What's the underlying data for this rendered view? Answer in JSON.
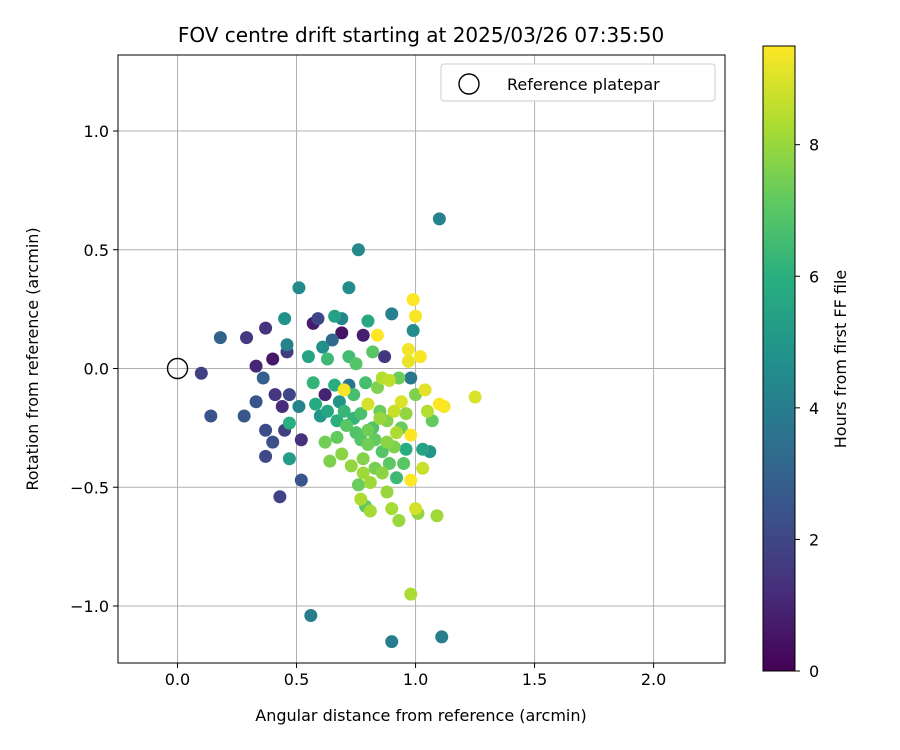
{
  "chart_data": {
    "type": "scatter",
    "title": "FOV centre drift starting at 2025/03/26 07:35:50",
    "xlabel": "Angular distance from reference (arcmin)",
    "ylabel": "Rotation from reference (arcmin)",
    "xlim": [
      -0.25,
      2.3
    ],
    "ylim": [
      -1.24,
      1.32
    ],
    "xticks": [
      "0.0",
      "0.5",
      "1.0",
      "1.5",
      "2.0"
    ],
    "xtick_values": [
      0,
      0.5,
      1.0,
      1.5,
      2.0
    ],
    "yticks": [
      "−1.0",
      "−0.5",
      "0.0",
      "0.5",
      "1.0"
    ],
    "ytick_values": [
      -1.0,
      -0.5,
      0.0,
      0.5,
      1.0
    ],
    "grid": true,
    "legend": {
      "position": "top-right",
      "entries": [
        "Reference platepar"
      ]
    },
    "reference_point": {
      "x": 0.0,
      "y": 0.0,
      "label": "Reference platepar"
    },
    "colorbar": {
      "label": "Hours from first FF file",
      "range": [
        0,
        9.5
      ],
      "ticks": [
        "0",
        "2",
        "4",
        "6",
        "8"
      ],
      "tick_values": [
        0,
        2,
        4,
        6,
        8
      ],
      "colormap": "viridis"
    },
    "points": [
      {
        "x": 0.1,
        "y": -0.02,
        "h": 1.8
      },
      {
        "x": 0.14,
        "y": -0.2,
        "h": 2.4
      },
      {
        "x": 0.18,
        "y": 0.13,
        "h": 3.0
      },
      {
        "x": 0.29,
        "y": 0.13,
        "h": 1.6
      },
      {
        "x": 0.28,
        "y": -0.2,
        "h": 2.6
      },
      {
        "x": 0.33,
        "y": 0.01,
        "h": 1.0
      },
      {
        "x": 0.33,
        "y": -0.14,
        "h": 2.5
      },
      {
        "x": 0.37,
        "y": 0.17,
        "h": 1.4
      },
      {
        "x": 0.37,
        "y": -0.26,
        "h": 2.2
      },
      {
        "x": 0.37,
        "y": -0.37,
        "h": 2.1
      },
      {
        "x": 0.36,
        "y": -0.04,
        "h": 2.9
      },
      {
        "x": 0.4,
        "y": 0.04,
        "h": 0.6
      },
      {
        "x": 0.41,
        "y": -0.11,
        "h": 1.5
      },
      {
        "x": 0.4,
        "y": -0.31,
        "h": 2.3
      },
      {
        "x": 0.43,
        "y": -0.54,
        "h": 1.9
      },
      {
        "x": 0.44,
        "y": -0.16,
        "h": 1.2
      },
      {
        "x": 0.45,
        "y": -0.26,
        "h": 1.8
      },
      {
        "x": 0.45,
        "y": 0.21,
        "h": 4.8
      },
      {
        "x": 0.46,
        "y": 0.1,
        "h": 4.2
      },
      {
        "x": 0.46,
        "y": 0.07,
        "h": 1.7
      },
      {
        "x": 0.47,
        "y": -0.11,
        "h": 2.0
      },
      {
        "x": 0.47,
        "y": -0.23,
        "h": 6.0
      },
      {
        "x": 0.47,
        "y": -0.38,
        "h": 5.2
      },
      {
        "x": 0.51,
        "y": 0.34,
        "h": 4.5
      },
      {
        "x": 0.51,
        "y": -0.16,
        "h": 4.2
      },
      {
        "x": 0.52,
        "y": -0.3,
        "h": 1.3
      },
      {
        "x": 0.52,
        "y": -0.47,
        "h": 2.5
      },
      {
        "x": 0.55,
        "y": 0.05,
        "h": 5.5
      },
      {
        "x": 0.56,
        "y": -1.04,
        "h": 4.0
      },
      {
        "x": 0.57,
        "y": 0.19,
        "h": 0.7
      },
      {
        "x": 0.57,
        "y": -0.06,
        "h": 6.2
      },
      {
        "x": 0.58,
        "y": -0.15,
        "h": 5.8
      },
      {
        "x": 0.59,
        "y": 0.21,
        "h": 2.0
      },
      {
        "x": 0.6,
        "y": -0.2,
        "h": 5.0
      },
      {
        "x": 0.61,
        "y": 0.09,
        "h": 4.7
      },
      {
        "x": 0.62,
        "y": -0.11,
        "h": 0.9
      },
      {
        "x": 0.62,
        "y": -0.31,
        "h": 7.4
      },
      {
        "x": 0.63,
        "y": -0.18,
        "h": 5.6
      },
      {
        "x": 0.63,
        "y": 0.04,
        "h": 6.4
      },
      {
        "x": 0.64,
        "y": -0.39,
        "h": 7.6
      },
      {
        "x": 0.65,
        "y": 0.12,
        "h": 3.2
      },
      {
        "x": 0.66,
        "y": 0.22,
        "h": 5.4
      },
      {
        "x": 0.66,
        "y": -0.07,
        "h": 5.9
      },
      {
        "x": 0.67,
        "y": -0.29,
        "h": 7.2
      },
      {
        "x": 0.68,
        "y": -0.14,
        "h": 4.9
      },
      {
        "x": 0.69,
        "y": 0.15,
        "h": 0.5
      },
      {
        "x": 0.69,
        "y": 0.21,
        "h": 4.3
      },
      {
        "x": 0.69,
        "y": -0.36,
        "h": 7.8
      },
      {
        "x": 0.7,
        "y": -0.18,
        "h": 6.3
      },
      {
        "x": 0.7,
        "y": -0.09,
        "h": 9.4
      },
      {
        "x": 0.72,
        "y": 0.34,
        "h": 4.6
      },
      {
        "x": 0.72,
        "y": 0.05,
        "h": 6.5
      },
      {
        "x": 0.72,
        "y": -0.07,
        "h": 3.6
      },
      {
        "x": 0.73,
        "y": -0.41,
        "h": 7.9
      },
      {
        "x": 0.74,
        "y": -0.11,
        "h": 6.6
      },
      {
        "x": 0.75,
        "y": 0.02,
        "h": 6.9
      },
      {
        "x": 0.75,
        "y": -0.27,
        "h": 6.8
      },
      {
        "x": 0.76,
        "y": -0.49,
        "h": 7.3
      },
      {
        "x": 0.76,
        "y": 0.5,
        "h": 4.4
      },
      {
        "x": 0.77,
        "y": -0.19,
        "h": 6.7
      },
      {
        "x": 0.77,
        "y": -0.55,
        "h": 8.3
      },
      {
        "x": 0.78,
        "y": -0.38,
        "h": 7.7
      },
      {
        "x": 0.78,
        "y": 0.14,
        "h": 0.8
      },
      {
        "x": 0.79,
        "y": -0.06,
        "h": 6.6
      },
      {
        "x": 0.79,
        "y": -0.58,
        "h": 7.1
      },
      {
        "x": 0.8,
        "y": 0.2,
        "h": 5.7
      },
      {
        "x": 0.8,
        "y": -0.15,
        "h": 8.9
      },
      {
        "x": 0.8,
        "y": -0.32,
        "h": 7.4
      },
      {
        "x": 0.81,
        "y": -0.48,
        "h": 8.1
      },
      {
        "x": 0.81,
        "y": -0.6,
        "h": 8.2
      },
      {
        "x": 0.82,
        "y": 0.07,
        "h": 7.0
      },
      {
        "x": 0.82,
        "y": -0.25,
        "h": 6.8
      },
      {
        "x": 0.83,
        "y": -0.42,
        "h": 7.5
      },
      {
        "x": 0.84,
        "y": -0.08,
        "h": 7.6
      },
      {
        "x": 0.84,
        "y": 0.14,
        "h": 9.5
      },
      {
        "x": 0.85,
        "y": -0.21,
        "h": 8.0
      },
      {
        "x": 0.86,
        "y": -0.35,
        "h": 6.9
      },
      {
        "x": 0.86,
        "y": -0.04,
        "h": 8.4
      },
      {
        "x": 0.87,
        "y": 0.05,
        "h": 1.5
      },
      {
        "x": 0.88,
        "y": -0.31,
        "h": 7.8
      },
      {
        "x": 0.88,
        "y": -0.52,
        "h": 8.0
      },
      {
        "x": 0.89,
        "y": -0.05,
        "h": 8.6
      },
      {
        "x": 0.9,
        "y": -0.59,
        "h": 8.2
      },
      {
        "x": 0.9,
        "y": 0.23,
        "h": 4.1
      },
      {
        "x": 0.9,
        "y": -1.15,
        "h": 4.0
      },
      {
        "x": 0.91,
        "y": -0.18,
        "h": 8.7
      },
      {
        "x": 0.92,
        "y": -0.46,
        "h": 6.4
      },
      {
        "x": 0.92,
        "y": -0.27,
        "h": 8.3
      },
      {
        "x": 0.93,
        "y": -0.64,
        "h": 8.0
      },
      {
        "x": 0.93,
        "y": -0.04,
        "h": 7.3
      },
      {
        "x": 0.94,
        "y": -0.14,
        "h": 9.0
      },
      {
        "x": 0.95,
        "y": -0.4,
        "h": 7.0
      },
      {
        "x": 0.96,
        "y": -0.34,
        "h": 5.8
      },
      {
        "x": 0.97,
        "y": 0.03,
        "h": 9.2
      },
      {
        "x": 0.97,
        "y": 0.08,
        "h": 9.3
      },
      {
        "x": 0.98,
        "y": -0.04,
        "h": 3.8
      },
      {
        "x": 0.98,
        "y": -0.28,
        "h": 9.5
      },
      {
        "x": 0.98,
        "y": -0.47,
        "h": 9.6
      },
      {
        "x": 0.98,
        "y": -0.95,
        "h": 8.3
      },
      {
        "x": 0.99,
        "y": 0.29,
        "h": 9.5
      },
      {
        "x": 0.99,
        "y": 0.16,
        "h": 4.6
      },
      {
        "x": 1.0,
        "y": -0.11,
        "h": 7.6
      },
      {
        "x": 1.0,
        "y": -0.59,
        "h": 8.9
      },
      {
        "x": 1.0,
        "y": 0.22,
        "h": 9.4
      },
      {
        "x": 1.01,
        "y": -0.61,
        "h": 7.9
      },
      {
        "x": 1.02,
        "y": 0.05,
        "h": 9.4
      },
      {
        "x": 1.03,
        "y": -0.34,
        "h": 5.5
      },
      {
        "x": 1.03,
        "y": -0.42,
        "h": 8.7
      },
      {
        "x": 1.04,
        "y": -0.09,
        "h": 9.1
      },
      {
        "x": 1.05,
        "y": -0.18,
        "h": 8.4
      },
      {
        "x": 1.06,
        "y": -0.35,
        "h": 5.0
      },
      {
        "x": 1.07,
        "y": -0.22,
        "h": 7.2
      },
      {
        "x": 1.09,
        "y": -0.62,
        "h": 8.1
      },
      {
        "x": 1.1,
        "y": 0.63,
        "h": 4.2
      },
      {
        "x": 1.1,
        "y": -0.15,
        "h": 9.5
      },
      {
        "x": 1.11,
        "y": -1.13,
        "h": 4.0
      },
      {
        "x": 1.12,
        "y": -0.16,
        "h": 9.4
      },
      {
        "x": 1.25,
        "y": -0.12,
        "h": 9.0
      },
      {
        "x": 0.85,
        "y": -0.18,
        "h": 7.3
      },
      {
        "x": 0.88,
        "y": -0.22,
        "h": 7.7
      },
      {
        "x": 0.83,
        "y": -0.3,
        "h": 7.2
      },
      {
        "x": 0.77,
        "y": -0.3,
        "h": 6.9
      },
      {
        "x": 0.8,
        "y": -0.26,
        "h": 7.4
      },
      {
        "x": 0.89,
        "y": -0.4,
        "h": 7.1
      },
      {
        "x": 0.86,
        "y": -0.44,
        "h": 7.8
      },
      {
        "x": 0.74,
        "y": -0.21,
        "h": 6.2
      },
      {
        "x": 0.71,
        "y": -0.24,
        "h": 7.0
      },
      {
        "x": 0.67,
        "y": -0.22,
        "h": 6.0
      },
      {
        "x": 0.78,
        "y": -0.44,
        "h": 8.1
      },
      {
        "x": 0.91,
        "y": -0.33,
        "h": 7.6
      },
      {
        "x": 0.94,
        "y": -0.25,
        "h": 7.3
      },
      {
        "x": 0.96,
        "y": -0.19,
        "h": 7.9
      }
    ]
  }
}
